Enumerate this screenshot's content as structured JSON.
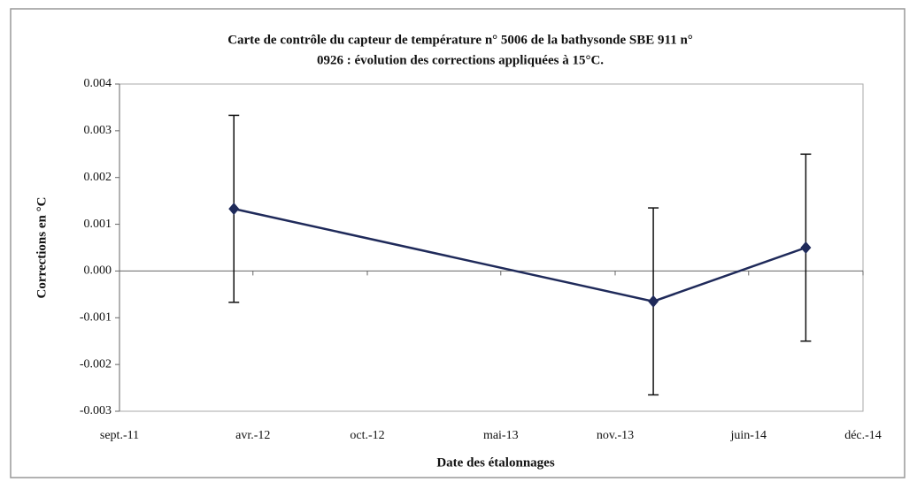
{
  "chart_data": {
    "type": "line",
    "title": [
      "Carte de contrôle du capteur de température n° 5006 de la bathysonde SBE 911 n°",
      "0926 : évolution des corrections appliquées à 15°C."
    ],
    "xlabel": "Date des étalonnages",
    "ylabel": "Corrections en °C",
    "x": [
      "2012-03",
      "2014-01",
      "2014-09"
    ],
    "values": [
      0.00133,
      -0.00065,
      0.0005
    ],
    "errors": [
      0.002,
      0.002,
      0.002
    ],
    "color": "#1f2a5a",
    "xlim": [
      "2011-09",
      "2014-12"
    ],
    "xticks": [
      {
        "value": "2011-09",
        "label": "sept.-11"
      },
      {
        "value": "2012-04",
        "label": "avr.-12"
      },
      {
        "value": "2012-10",
        "label": "oct.-12"
      },
      {
        "value": "2013-05",
        "label": "mai-13"
      },
      {
        "value": "2013-11",
        "label": "nov.-13"
      },
      {
        "value": "2014-06",
        "label": "juin-14"
      },
      {
        "value": "2014-12",
        "label": "déc.-14"
      }
    ],
    "ylim": [
      -0.003,
      0.004
    ],
    "yticks": [
      0.004,
      0.003,
      0.002,
      0.001,
      {
        "value": 0,
        "label": "0.000"
      },
      -0.001,
      -0.002,
      -0.003
    ]
  }
}
